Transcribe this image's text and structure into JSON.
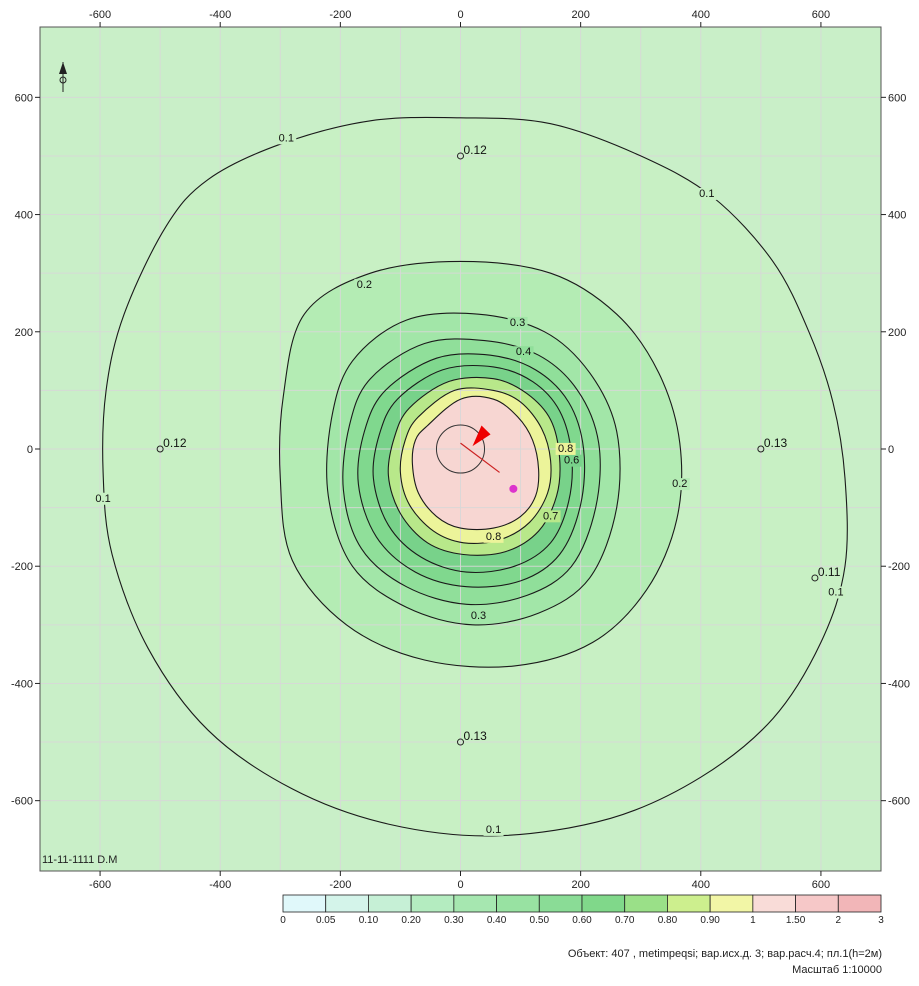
{
  "map": {
    "corner_label": "11-11-1111 D.M",
    "grid_lines": [
      -600,
      -500,
      -400,
      -300,
      -200,
      -100,
      0,
      100,
      200,
      300,
      400,
      500,
      600
    ],
    "x_ticks": [
      "-600",
      "-400",
      "-200",
      "0",
      "200",
      "400",
      "600"
    ],
    "x_tick_values": [
      -600,
      -400,
      -200,
      0,
      200,
      400,
      600
    ],
    "y_ticks": [
      "600",
      "400",
      "200",
      "0",
      "-200",
      "-400",
      "-600"
    ],
    "y_tick_values": [
      600,
      400,
      200,
      0,
      -200,
      -400,
      -600
    ],
    "xlim": [
      -700,
      700
    ],
    "ylim": [
      -720,
      720
    ]
  },
  "contours": [
    {
      "value": "0.1",
      "fill": "#c8f0c4",
      "points": [
        [
          -490,
          380
        ],
        [
          -420,
          460
        ],
        [
          -300,
          520
        ],
        [
          -150,
          560
        ],
        [
          0,
          565
        ],
        [
          150,
          555
        ],
        [
          300,
          500
        ],
        [
          420,
          430
        ],
        [
          520,
          320
        ],
        [
          580,
          200
        ],
        [
          620,
          80
        ],
        [
          640,
          -50
        ],
        [
          640,
          -200
        ],
        [
          600,
          -330
        ],
        [
          520,
          -460
        ],
        [
          400,
          -560
        ],
        [
          250,
          -630
        ],
        [
          60,
          -660
        ],
        [
          -120,
          -640
        ],
        [
          -280,
          -580
        ],
        [
          -420,
          -480
        ],
        [
          -520,
          -340
        ],
        [
          -580,
          -180
        ],
        [
          -595,
          -40
        ],
        [
          -590,
          100
        ],
        [
          -560,
          230
        ]
      ],
      "labels": [
        {
          "text": "0.1",
          "x": -290,
          "y": 525
        },
        {
          "text": "0.1",
          "x": 410,
          "y": 430
        },
        {
          "text": "0.1",
          "x": -595,
          "y": -90
        },
        {
          "text": "0.1",
          "x": 625,
          "y": -250
        },
        {
          "text": "0.1",
          "x": 55,
          "y": -655
        }
      ]
    },
    {
      "value": "0.2",
      "fill": "#b4ecb4",
      "points": [
        [
          -260,
          230
        ],
        [
          -150,
          300
        ],
        [
          0,
          320
        ],
        [
          150,
          300
        ],
        [
          260,
          230
        ],
        [
          330,
          130
        ],
        [
          365,
          10
        ],
        [
          360,
          -120
        ],
        [
          310,
          -240
        ],
        [
          220,
          -330
        ],
        [
          90,
          -370
        ],
        [
          -60,
          -360
        ],
        [
          -190,
          -300
        ],
        [
          -280,
          -190
        ],
        [
          -300,
          -50
        ],
        [
          -295,
          90
        ]
      ],
      "labels": [
        {
          "text": "0.2",
          "x": -160,
          "y": 275
        },
        {
          "text": "0.2",
          "x": 365,
          "y": -65
        }
      ]
    },
    {
      "value": "0.3",
      "fill": "#a2e6a8",
      "points": [
        [
          -180,
          150
        ],
        [
          -90,
          220
        ],
        [
          30,
          230
        ],
        [
          140,
          200
        ],
        [
          215,
          130
        ],
        [
          260,
          30
        ],
        [
          260,
          -100
        ],
        [
          215,
          -220
        ],
        [
          130,
          -280
        ],
        [
          20,
          -300
        ],
        [
          -90,
          -270
        ],
        [
          -180,
          -200
        ],
        [
          -220,
          -80
        ],
        [
          -215,
          50
        ]
      ],
      "labels": [
        {
          "text": "0.3",
          "x": 95,
          "y": 210
        },
        {
          "text": "0.3",
          "x": 30,
          "y": -290
        }
      ]
    },
    {
      "value": "0.4",
      "fill": "#90df9a",
      "points": [
        [
          -150,
          120
        ],
        [
          -60,
          180
        ],
        [
          40,
          185
        ],
        [
          130,
          160
        ],
        [
          195,
          100
        ],
        [
          230,
          10
        ],
        [
          225,
          -100
        ],
        [
          185,
          -200
        ],
        [
          110,
          -250
        ],
        [
          10,
          -265
        ],
        [
          -90,
          -235
        ],
        [
          -165,
          -170
        ],
        [
          -195,
          -70
        ],
        [
          -185,
          40
        ]
      ],
      "labels": [
        {
          "text": "0.4",
          "x": 105,
          "y": 160
        }
      ]
    },
    {
      "value": "0.5",
      "fill": "#80d88e",
      "points": [
        [
          -125,
          100
        ],
        [
          -40,
          155
        ],
        [
          50,
          160
        ],
        [
          125,
          135
        ],
        [
          180,
          80
        ],
        [
          205,
          0
        ],
        [
          200,
          -95
        ],
        [
          165,
          -180
        ],
        [
          100,
          -225
        ],
        [
          10,
          -235
        ],
        [
          -75,
          -210
        ],
        [
          -140,
          -150
        ],
        [
          -170,
          -60
        ],
        [
          -160,
          30
        ]
      ],
      "labels": []
    },
    {
      "value": "0.6",
      "fill": "#78d28a",
      "points": [
        [
          -105,
          85
        ],
        [
          -30,
          135
        ],
        [
          55,
          140
        ],
        [
          120,
          115
        ],
        [
          165,
          65
        ],
        [
          185,
          -10
        ],
        [
          180,
          -90
        ],
        [
          150,
          -160
        ],
        [
          90,
          -200
        ],
        [
          10,
          -210
        ],
        [
          -65,
          -185
        ],
        [
          -120,
          -130
        ],
        [
          -145,
          -50
        ],
        [
          -135,
          25
        ]
      ],
      "labels": [
        {
          "text": "0.6",
          "x": 185,
          "y": -25
        }
      ]
    },
    {
      "value": "0.7",
      "fill": "#b8e88a",
      "points": [
        [
          -85,
          70
        ],
        [
          -20,
          115
        ],
        [
          55,
          120
        ],
        [
          110,
          95
        ],
        [
          150,
          50
        ],
        [
          165,
          -15
        ],
        [
          160,
          -80
        ],
        [
          130,
          -140
        ],
        [
          75,
          -175
        ],
        [
          5,
          -180
        ],
        [
          -55,
          -160
        ],
        [
          -100,
          -110
        ],
        [
          -120,
          -45
        ],
        [
          -110,
          20
        ]
      ],
      "labels": [
        {
          "text": "0.7",
          "x": 150,
          "y": -120
        }
      ]
    },
    {
      "value": "0.8",
      "fill": "#ecf49a",
      "points": [
        [
          -70,
          55
        ],
        [
          -10,
          100
        ],
        [
          55,
          100
        ],
        [
          100,
          80
        ],
        [
          135,
          35
        ],
        [
          150,
          -20
        ],
        [
          145,
          -75
        ],
        [
          115,
          -125
        ],
        [
          65,
          -155
        ],
        [
          5,
          -160
        ],
        [
          -45,
          -140
        ],
        [
          -85,
          -95
        ],
        [
          -100,
          -40
        ],
        [
          -92,
          15
        ]
      ],
      "labels": [
        {
          "text": "0.8",
          "x": 55,
          "y": -155
        },
        {
          "text": "0.8",
          "x": 175,
          "y": -5
        }
      ]
    },
    {
      "value": "1",
      "fill": "#f7d6d2",
      "points": [
        [
          -55,
          40
        ],
        [
          0,
          85
        ],
        [
          55,
          85
        ],
        [
          95,
          55
        ],
        [
          120,
          15
        ],
        [
          130,
          -35
        ],
        [
          125,
          -80
        ],
        [
          100,
          -115
        ],
        [
          55,
          -135
        ],
        [
          0,
          -135
        ],
        [
          -40,
          -115
        ],
        [
          -70,
          -75
        ],
        [
          -80,
          -25
        ],
        [
          -75,
          15
        ]
      ],
      "labels": []
    }
  ],
  "inner_circle_radius": 40,
  "sources": [
    {
      "shape": "triangle",
      "color": "#ee0000",
      "points": [
        [
          20,
          5
        ],
        [
          35,
          40
        ],
        [
          50,
          25
        ]
      ]
    },
    {
      "shape": "blob",
      "color": "#dd33cc",
      "x": 88,
      "y": -68,
      "r": 9
    }
  ],
  "point_labels": [
    {
      "text": "0.12",
      "x": 0,
      "y": 500
    },
    {
      "text": "0.12",
      "x": -500,
      "y": 0
    },
    {
      "text": "0.13",
      "x": 500,
      "y": 0
    },
    {
      "text": "0.11",
      "x": 590,
      "y": -220
    },
    {
      "text": "0.13",
      "x": 0,
      "y": -500
    }
  ],
  "legend": {
    "labels": [
      "0",
      "0.05",
      "0.10",
      "0.20",
      "0.30",
      "0.40",
      "0.50",
      "0.60",
      "0.70",
      "0.80",
      "0.90",
      "1",
      "1.50",
      "2",
      "3"
    ],
    "colors": [
      "#e0f8fa",
      "#d4f4ea",
      "#c6f0d6",
      "#b4ecc0",
      "#a6e7b0",
      "#98e2a2",
      "#8adc96",
      "#80d88a",
      "#9ae088",
      "#cdef8e",
      "#f2f6a6",
      "#f9dcd8",
      "#f6c8c8",
      "#f2b6b8"
    ]
  },
  "footer": {
    "line1": "Объект: 407 , metimpeqsi; вар.исх.д. 3; вар.расч.4; пл.1(h=2м)",
    "line2": "Масштаб 1:10000"
  }
}
